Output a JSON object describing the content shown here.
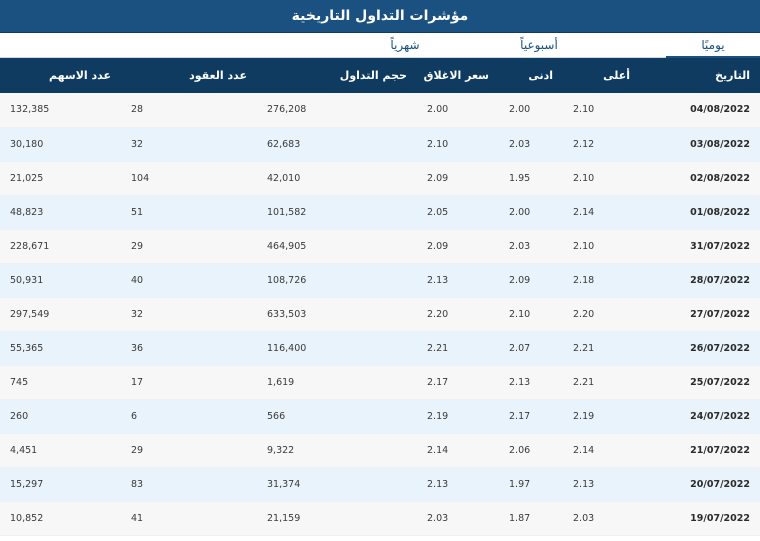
{
  "title": "مؤشرات التداول التاريخية",
  "tabs": [
    {
      "label": "يوميًا",
      "active": true
    },
    {
      "label": "أسبوعياً",
      "active": false
    },
    {
      "label": "شهرياً",
      "active": false
    }
  ],
  "table": {
    "headers": {
      "date": "التاريخ",
      "high": "أعلى",
      "low": "ادنى",
      "close": "سعر الاغلاق",
      "volume": "حجم التداول",
      "contracts": "عدد العقود",
      "shares": "عدد الاسهم"
    },
    "rows": [
      {
        "date": "04/08/2022",
        "high": "2.10",
        "low": "2.00",
        "close": "2.00",
        "volume": "276,208",
        "contracts": "28",
        "shares": "132,385"
      },
      {
        "date": "03/08/2022",
        "high": "2.12",
        "low": "2.03",
        "close": "2.10",
        "volume": "62,683",
        "contracts": "32",
        "shares": "30,180"
      },
      {
        "date": "02/08/2022",
        "high": "2.10",
        "low": "1.95",
        "close": "2.09",
        "volume": "42,010",
        "contracts": "104",
        "shares": "21,025"
      },
      {
        "date": "01/08/2022",
        "high": "2.14",
        "low": "2.00",
        "close": "2.05",
        "volume": "101,582",
        "contracts": "51",
        "shares": "48,823"
      },
      {
        "date": "31/07/2022",
        "high": "2.10",
        "low": "2.03",
        "close": "2.09",
        "volume": "464,905",
        "contracts": "29",
        "shares": "228,671"
      },
      {
        "date": "28/07/2022",
        "high": "2.18",
        "low": "2.09",
        "close": "2.13",
        "volume": "108,726",
        "contracts": "40",
        "shares": "50,931"
      },
      {
        "date": "27/07/2022",
        "high": "2.20",
        "low": "2.10",
        "close": "2.20",
        "volume": "633,503",
        "contracts": "32",
        "shares": "297,549"
      },
      {
        "date": "26/07/2022",
        "high": "2.21",
        "low": "2.07",
        "close": "2.21",
        "volume": "116,400",
        "contracts": "36",
        "shares": "55,365"
      },
      {
        "date": "25/07/2022",
        "high": "2.21",
        "low": "2.13",
        "close": "2.17",
        "volume": "1,619",
        "contracts": "17",
        "shares": "745"
      },
      {
        "date": "24/07/2022",
        "high": "2.19",
        "low": "2.17",
        "close": "2.19",
        "volume": "566",
        "contracts": "6",
        "shares": "260"
      },
      {
        "date": "21/07/2022",
        "high": "2.14",
        "low": "2.06",
        "close": "2.14",
        "volume": "9,322",
        "contracts": "29",
        "shares": "4,451"
      },
      {
        "date": "20/07/2022",
        "high": "2.13",
        "low": "1.97",
        "close": "2.13",
        "volume": "31,374",
        "contracts": "83",
        "shares": "15,297"
      },
      {
        "date": "19/07/2022",
        "high": "2.03",
        "low": "1.87",
        "close": "2.03",
        "volume": "21,159",
        "contracts": "41",
        "shares": "10,852"
      }
    ]
  }
}
